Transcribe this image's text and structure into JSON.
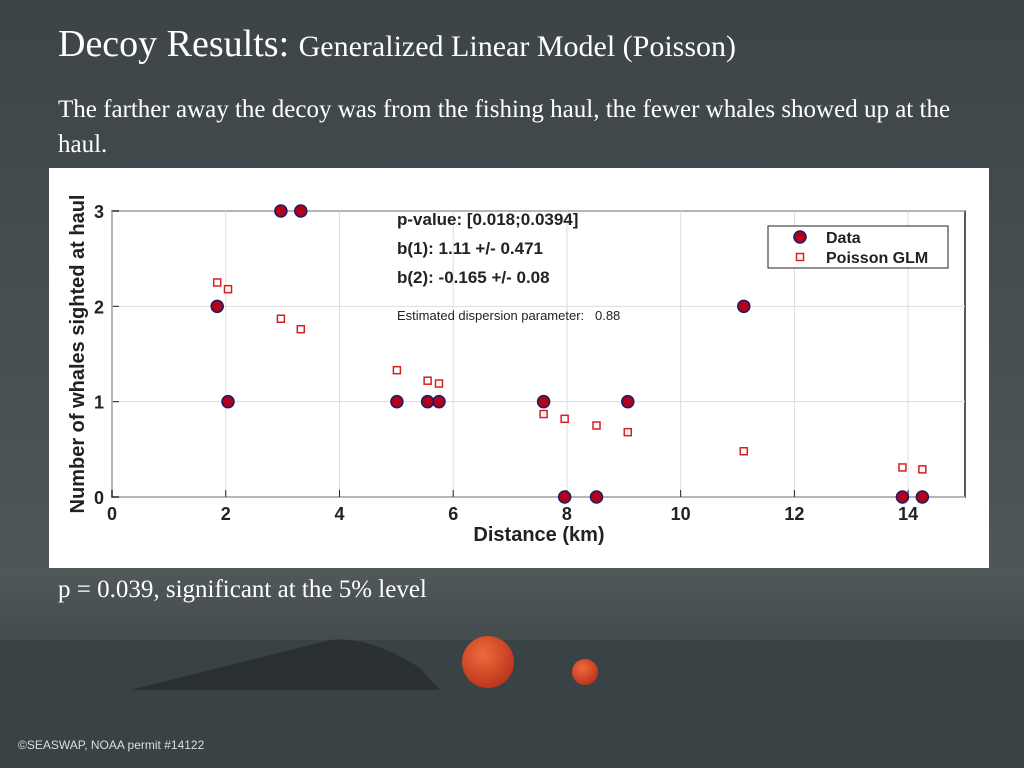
{
  "header": {
    "title": "Decoy Results:",
    "subtitle": "Generalized Linear Model (Poisson)"
  },
  "body": "The farther away the decoy was from the fishing haul, the fewer whales showed up at the haul.",
  "footnote": "p = 0.039, significant at the 5% level",
  "credit": "©SEASWAP, NOAA permit #14122",
  "chart_data": {
    "type": "scatter",
    "xlabel": "Distance (km)",
    "ylabel": "Number of whales sighted at haul",
    "annotations": [
      "p-value: [0.018;0.0394]",
      "b(1): 1.11 +/- 0.471",
      "b(2): -0.165 +/- 0.08",
      "Estimated dispersion parameter:   0.88"
    ],
    "x": [
      1.85,
      2.04,
      2.97,
      3.32,
      5.01,
      5.55,
      5.75,
      7.59,
      7.96,
      8.52,
      9.07,
      11.11,
      13.9,
      14.25
    ],
    "series": [
      {
        "name": "Data",
        "color": "#b3001b",
        "values": [
          2,
          1,
          3,
          3,
          1,
          1,
          1,
          1,
          0,
          0,
          1,
          2,
          0,
          0
        ]
      },
      {
        "name": "Poisson GLM",
        "color": "#d42020",
        "values": [
          2.25,
          2.18,
          1.87,
          1.76,
          1.33,
          1.22,
          1.19,
          0.87,
          0.82,
          0.75,
          0.68,
          0.48,
          0.31,
          0.29
        ]
      }
    ],
    "xlim": [
      0,
      15
    ],
    "ylim": [
      0,
      3
    ],
    "xticks": [
      0,
      2,
      4,
      6,
      8,
      10,
      12,
      14
    ],
    "yticks": [
      0,
      1,
      2,
      3
    ],
    "grid": true,
    "legend": "upper right"
  }
}
